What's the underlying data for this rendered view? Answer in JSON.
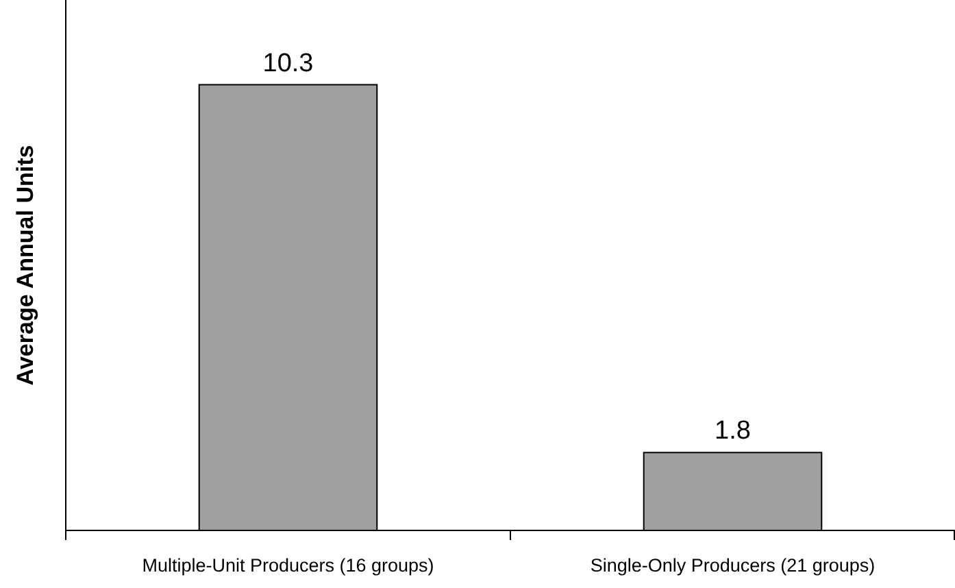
{
  "chart_data": {
    "type": "bar",
    "ylabel": "Average Annual Units",
    "categories": [
      "Multiple-Unit Producers (16 groups)",
      "Single-Only Producers (21 groups)"
    ],
    "values": [
      10.3,
      1.8
    ],
    "color": "#a0a0a0",
    "data_labels": true
  }
}
